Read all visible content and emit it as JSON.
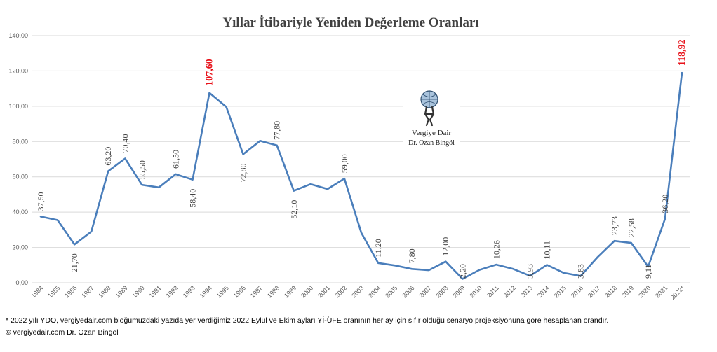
{
  "chart_data": {
    "type": "line",
    "title": "Yıllar İtibariyle Yeniden Değerleme Oranları",
    "xlabel": "",
    "ylabel": "",
    "ylim": [
      0,
      140
    ],
    "yticks": [
      "0,00",
      "20,00",
      "40,00",
      "60,00",
      "80,00",
      "100,00",
      "120,00",
      "140,00"
    ],
    "categories": [
      "1984",
      "1985",
      "1986",
      "1987",
      "1988",
      "1989",
      "1990",
      "1991",
      "1992",
      "1993",
      "1994",
      "1995",
      "1996",
      "1997",
      "1998",
      "1999",
      "2000",
      "2001",
      "2002",
      "2003",
      "2004",
      "2005",
      "2006",
      "2007",
      "2008",
      "2009",
      "2010",
      "2011",
      "2012",
      "2013",
      "2014",
      "2015",
      "2016",
      "2017",
      "2018",
      "2019",
      "2020",
      "2021",
      "2022*"
    ],
    "series": [
      {
        "name": "Yeniden Değerleme Oranı",
        "color": "#4a7ebb",
        "values": [
          37.5,
          35.5,
          21.7,
          29,
          63.2,
          70.4,
          55.5,
          54,
          61.5,
          58.4,
          107.6,
          99.6,
          72.8,
          80.4,
          77.8,
          52.1,
          55.9,
          53.1,
          59,
          28.3,
          11.2,
          9.8,
          7.8,
          7.1,
          12,
          2.2,
          7.3,
          10.26,
          7.8,
          3.93,
          10.11,
          5.58,
          3.83,
          14.47,
          23.73,
          22.58,
          9.11,
          36.2,
          118.92
        ]
      }
    ],
    "data_labels": [
      {
        "index": 0,
        "text": "37,50",
        "highlight": false
      },
      {
        "index": 2,
        "text": "21,70",
        "highlight": false
      },
      {
        "index": 4,
        "text": "63,20",
        "highlight": false
      },
      {
        "index": 5,
        "text": "70,40",
        "highlight": false
      },
      {
        "index": 6,
        "text": "55,50",
        "highlight": false
      },
      {
        "index": 8,
        "text": "61,50",
        "highlight": false
      },
      {
        "index": 9,
        "text": "58,40",
        "highlight": false
      },
      {
        "index": 10,
        "text": "107,60",
        "highlight": true
      },
      {
        "index": 12,
        "text": "72,80",
        "highlight": false
      },
      {
        "index": 14,
        "text": "77,80",
        "highlight": false
      },
      {
        "index": 15,
        "text": "52,10",
        "highlight": false
      },
      {
        "index": 18,
        "text": "59,00",
        "highlight": false
      },
      {
        "index": 20,
        "text": "11,20",
        "highlight": false
      },
      {
        "index": 22,
        "text": "7,80",
        "highlight": false
      },
      {
        "index": 24,
        "text": "12,00",
        "highlight": false
      },
      {
        "index": 25,
        "text": "2,20",
        "highlight": false
      },
      {
        "index": 27,
        "text": "10,26",
        "highlight": false
      },
      {
        "index": 29,
        "text": "3,93",
        "highlight": false
      },
      {
        "index": 30,
        "text": "10,11",
        "highlight": false
      },
      {
        "index": 32,
        "text": "3,83",
        "highlight": false
      },
      {
        "index": 34,
        "text": "23,73",
        "highlight": false
      },
      {
        "index": 35,
        "text": "22,58",
        "highlight": false
      },
      {
        "index": 36,
        "text": "9,11",
        "highlight": false
      },
      {
        "index": 37,
        "text": "36,20",
        "highlight": false
      },
      {
        "index": 38,
        "text": "118,92",
        "highlight": true
      }
    ],
    "highlight_color": "#e8121a",
    "grid": true,
    "legend": "none"
  },
  "logo": {
    "line1": "Vergiye Dair",
    "line2": "Dr. Ozan Bingöl"
  },
  "footnote": "* 2022 yılı YDO, vergiyedair.com bloğumuzdaki yazıda yer verdiğimiz 2022 Eylül ve Ekim ayları Yİ-ÜFE oranının her ay için sıfır olduğu senaryo projeksiyonuna göre hesaplanan orandır.",
  "copyright": "© vergiyedair.com Dr. Ozan Bingöl"
}
